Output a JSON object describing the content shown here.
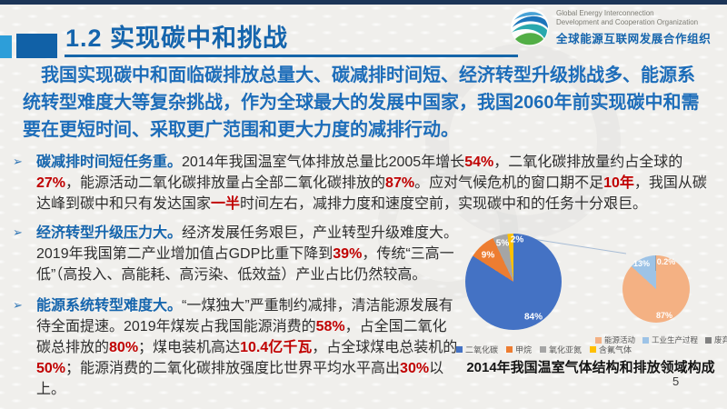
{
  "slide": {
    "title": "1.2 实现碳中和挑战",
    "page_number": "5"
  },
  "logo": {
    "name_en_line1": "Global Energy Interconnection",
    "name_en_line2": "Development and Cooperation Organization",
    "name_zh": "全球能源互联网发展合作组织"
  },
  "intro": {
    "text": "我国实现碳中和面临碳排放总量大、碳减排时间短、经济转型升级挑战多、能源系统转型难度大等复杂挑战，作为全球最大的发展中国家，我国2060年前实现碳中和需要在更短时间、采取更广范围和更大力度的减排行动。"
  },
  "bullets": [
    {
      "marker": "➢",
      "heading": "碳减排时间短任务重。",
      "segments": [
        {
          "text": "2014年我国温室气体排放总量比2005年增长"
        },
        {
          "text": "54%",
          "emphasis": true
        },
        {
          "text": "，二氧化碳排放量约占全球的"
        },
        {
          "text": "27%",
          "emphasis": true
        },
        {
          "text": "，能源活动二氧化碳排放量占全部二氧化碳排放的"
        },
        {
          "text": "87%",
          "emphasis": true
        },
        {
          "text": "。应对气候危机的窗口期不足"
        },
        {
          "text": "10年",
          "emphasis": true
        },
        {
          "text": "，我国从碳达峰到碳中和只有发达国家"
        },
        {
          "text": "一半",
          "emphasis": true
        },
        {
          "text": "时间左右，减排力度和速度空前，实现碳中和的任务十分艰巨。"
        }
      ]
    },
    {
      "marker": "➢",
      "heading": "经济转型升级压力大。",
      "segments": [
        {
          "text": "经济发展任务艰巨，产业转型升级难度大。2019年我国第二产业增加值占GDP比重下降到"
        },
        {
          "text": "39%",
          "emphasis": true
        },
        {
          "text": "，传统“三高一低”（高投入、高能耗、高污染、低效益）产业占比仍然较高。"
        }
      ]
    },
    {
      "marker": "➢",
      "heading": "能源系统转型难度大。",
      "segments": [
        {
          "text": "“一煤独大”严重制约减排，清洁能源发展有待全面提速。2019年煤炭占我国能源消费的"
        },
        {
          "text": "58%",
          "emphasis": true
        },
        {
          "text": "，占全国二氧化碳总排放的"
        },
        {
          "text": "80%",
          "emphasis": true
        },
        {
          "text": "；煤电装机高达"
        },
        {
          "text": "10.4亿千瓦",
          "emphasis": true
        },
        {
          "text": "，占全球煤电总装机的"
        },
        {
          "text": "50%",
          "emphasis": true
        },
        {
          "text": "；能源消费的二氧化碳排放强度比世界平均水平高出"
        },
        {
          "text": "30%",
          "emphasis": true
        },
        {
          "text": "以上。"
        }
      ]
    }
  ],
  "chart_caption": "2014年我国温室气体结构和排放领域构成",
  "chart_data": [
    {
      "type": "pie",
      "title": "温室气体结构",
      "labels": [
        "二氧化碳",
        "甲烷",
        "氧化亚氮",
        "含氟气体"
      ],
      "values": [
        84,
        9,
        5,
        2
      ],
      "colors": [
        "#4472C4",
        "#ED7D31",
        "#A5A5A5",
        "#FFC000"
      ],
      "slice_labels": [
        "84%",
        "9%",
        "5%",
        "2%"
      ],
      "legend_position": "bottom"
    },
    {
      "type": "pie",
      "title": "排放领域",
      "labels": [
        "能源活动",
        "工业生产过程",
        "废弃物处理"
      ],
      "values": [
        86.8,
        13,
        0.2
      ],
      "colors": [
        "#F4B183",
        "#9DC3E6",
        "#808080"
      ],
      "slice_labels": [
        "87%",
        "13%",
        "0.2%"
      ],
      "legend_position": "top"
    }
  ],
  "colors": {
    "accent_blue": "#1565AD",
    "intro_blue": "#1D6DB9",
    "emphasis_red": "#C00000",
    "top_stripe": "#1C3557",
    "square_light": "#2D9ED9",
    "square_dark": "#1161A7"
  }
}
